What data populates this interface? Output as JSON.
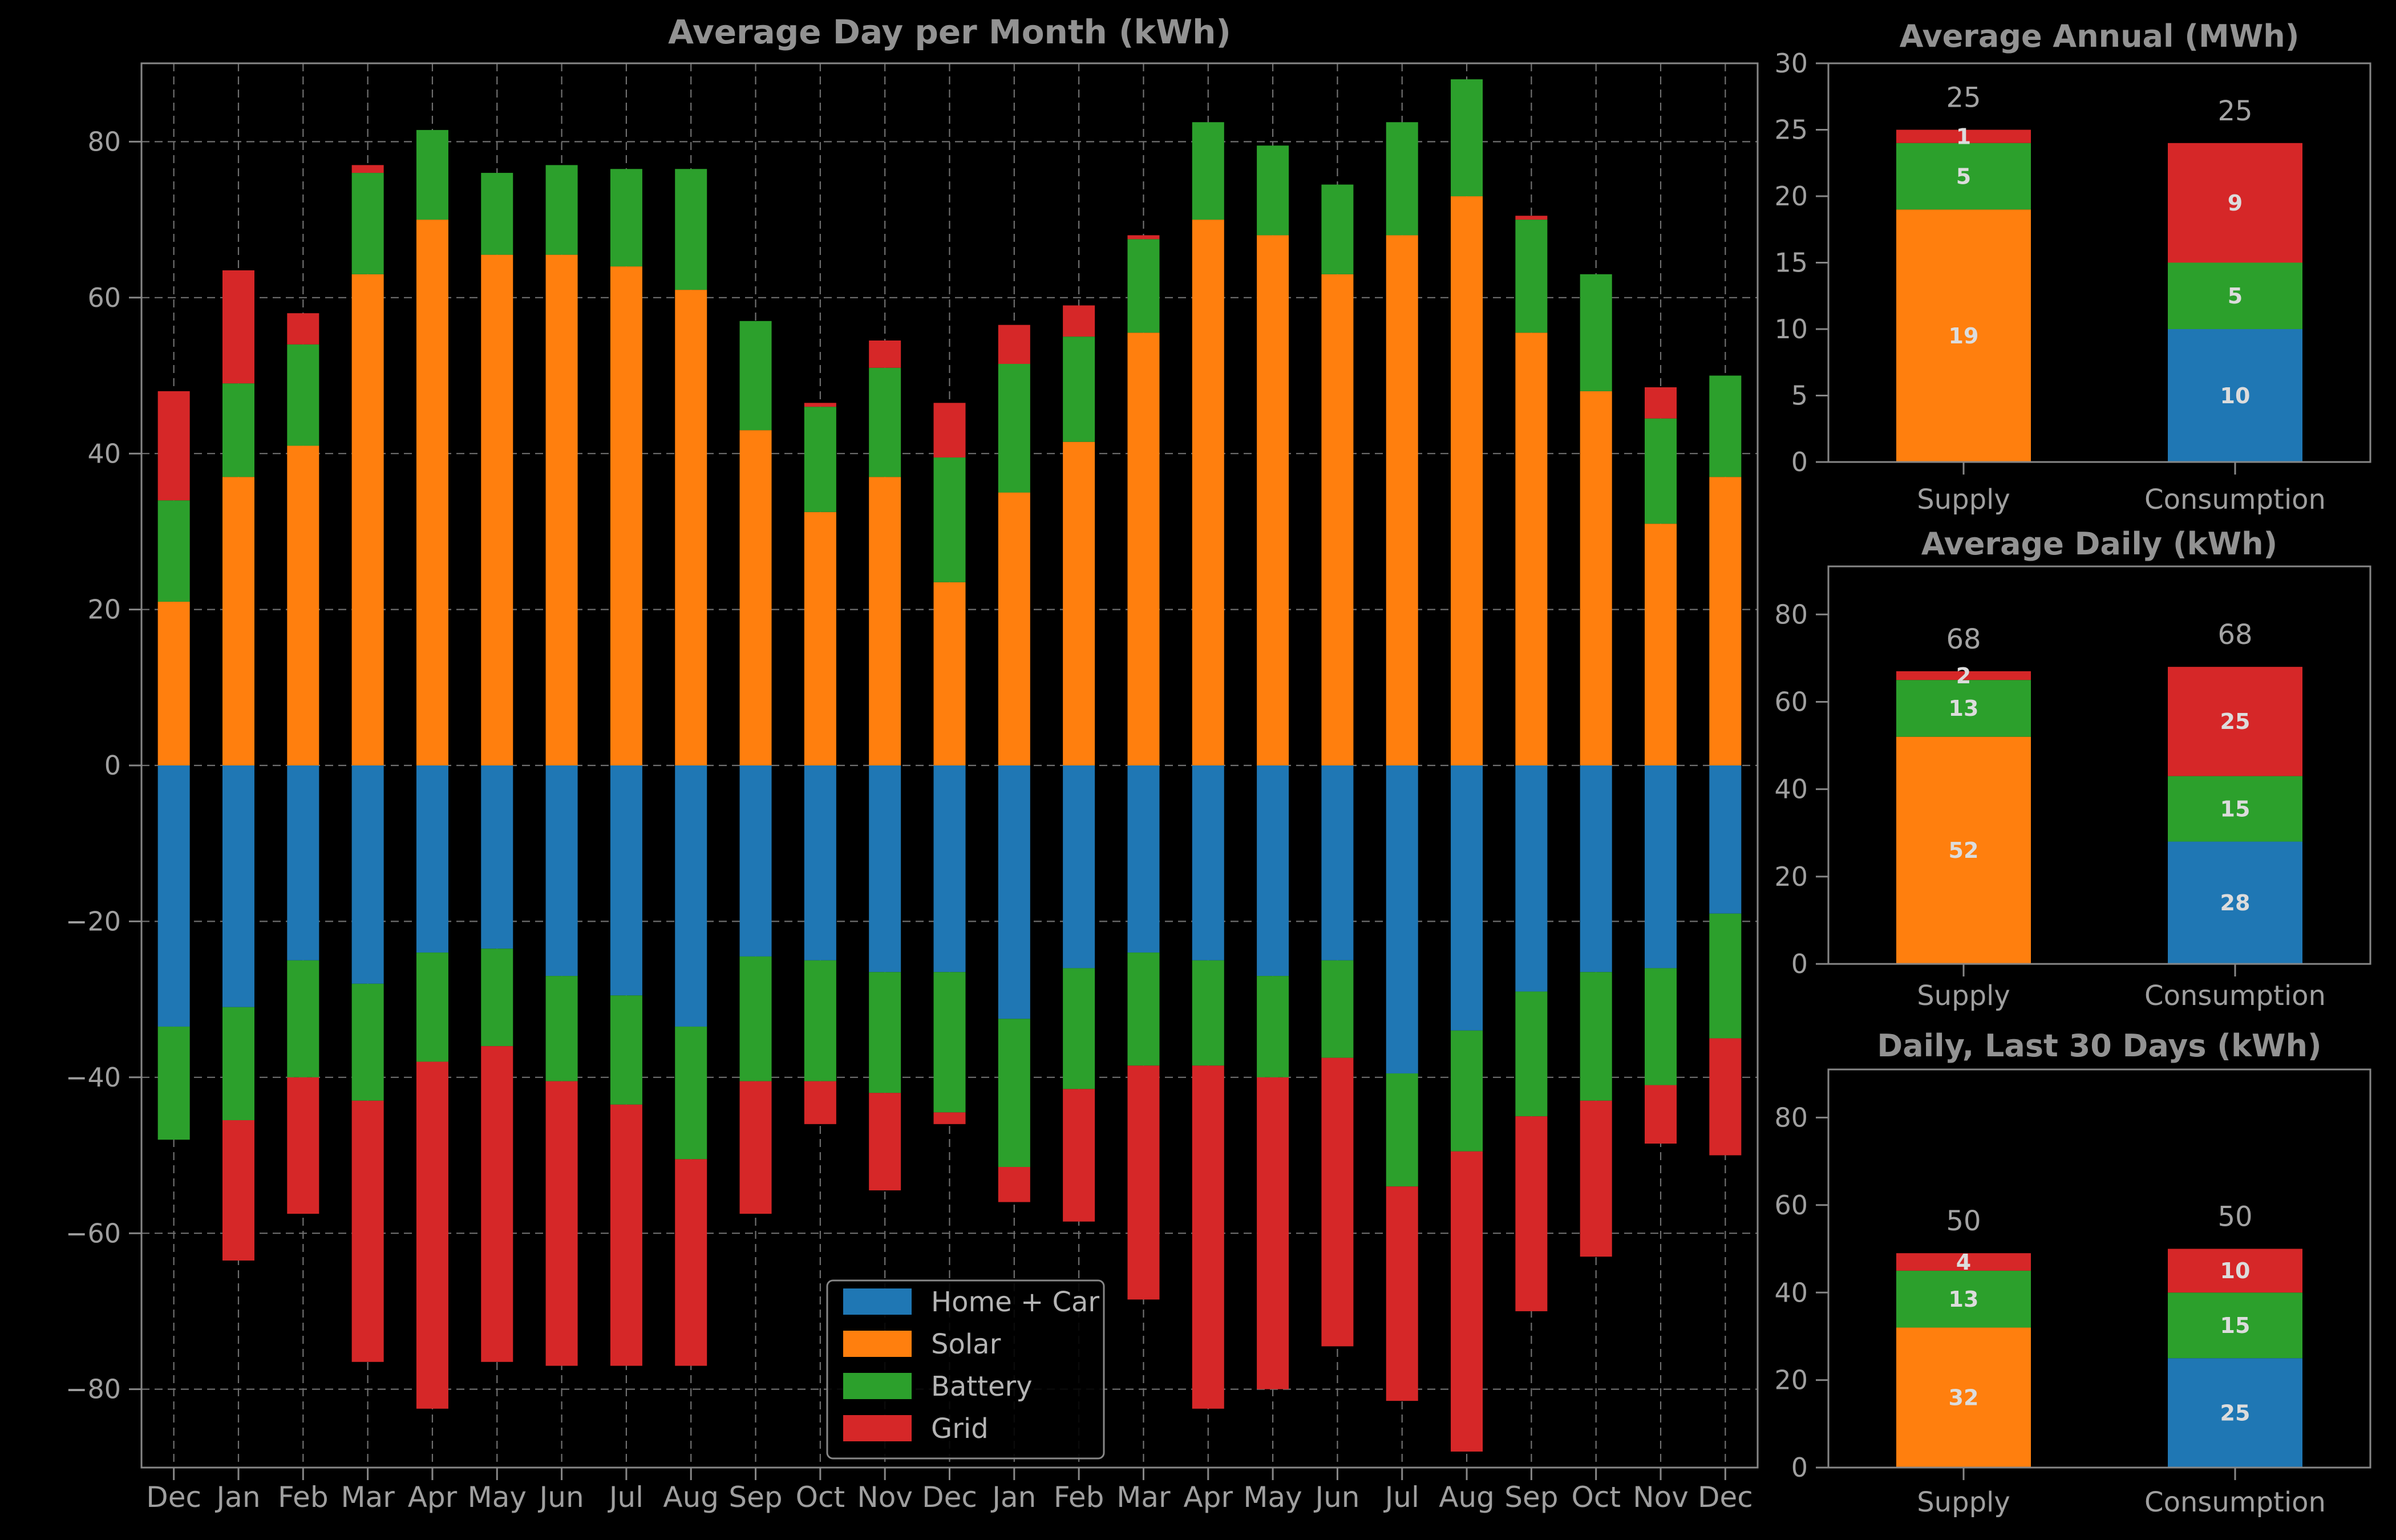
{
  "figure": {
    "background": "#000000",
    "palette": {
      "blue": "#1f77b4",
      "orange": "#ff7f0e",
      "green": "#2ca02c",
      "red": "#d62728"
    },
    "text_colors": {
      "ticks": "#9f9f9f",
      "titles": "#929292",
      "totals": "#a3a3a3",
      "segment_labels": "#dcdcdc",
      "legend": "#b4b4b4",
      "spine": "#878787",
      "grid": "#6f6f6f"
    }
  },
  "chart_data": [
    {
      "id": "avg-day-per-month",
      "type": "bar",
      "stacked": true,
      "title": "Average Day per Month (kWh)",
      "xlabel": "",
      "ylabel": "",
      "ylim": [
        -90,
        90
      ],
      "yticks": [
        -80,
        -60,
        -40,
        -20,
        0,
        20,
        40,
        60,
        80
      ],
      "grid": true,
      "categories": [
        "Dec",
        "Jan",
        "Feb",
        "Mar",
        "Apr",
        "May",
        "Jun",
        "Jul",
        "Aug",
        "Sep",
        "Oct",
        "Nov",
        "Dec",
        "Jan",
        "Feb",
        "Mar",
        "Apr",
        "May",
        "Jun",
        "Jul",
        "Aug",
        "Sep",
        "Oct",
        "Nov",
        "Dec"
      ],
      "legend": {
        "position": "lower-center-left",
        "entries": [
          {
            "label": "Home + Car",
            "color": "blue"
          },
          {
            "label": "Solar",
            "color": "orange"
          },
          {
            "label": "Battery",
            "color": "green"
          },
          {
            "label": "Grid",
            "color": "red"
          }
        ]
      },
      "series": [
        {
          "name": "Solar",
          "direction": "positive",
          "color": "orange",
          "values": [
            21,
            37,
            41,
            63,
            70,
            65.5,
            65.5,
            64,
            61,
            43,
            32.5,
            37,
            23.5,
            35,
            41.5,
            55.5,
            70,
            68,
            63,
            68,
            73,
            55.5,
            48,
            31,
            37
          ]
        },
        {
          "name": "Battery",
          "direction": "positive",
          "color": "green",
          "values": [
            13,
            12,
            13,
            13,
            11.5,
            10.5,
            11.5,
            12.5,
            15.5,
            14,
            13.5,
            14,
            16,
            16.5,
            13.5,
            12,
            12.5,
            11.5,
            11.5,
            14.5,
            15,
            14.5,
            15,
            13.5,
            13
          ]
        },
        {
          "name": "Grid",
          "direction": "positive",
          "color": "red",
          "values": [
            14,
            14.5,
            4,
            1,
            0,
            0,
            0,
            0,
            0,
            0,
            0.5,
            3.5,
            7,
            5,
            4,
            0.5,
            0,
            0,
            0,
            0,
            0,
            0.5,
            0,
            4,
            0
          ]
        },
        {
          "name": "Home + Car",
          "direction": "negative",
          "color": "blue",
          "values": [
            33.5,
            31,
            25,
            28,
            24,
            23.5,
            27,
            29.5,
            33.5,
            24.5,
            25,
            26.5,
            26.5,
            32.5,
            26,
            24,
            25,
            27,
            25,
            39.5,
            34,
            29,
            26.5,
            26,
            19
          ]
        },
        {
          "name": "Battery",
          "direction": "negative",
          "color": "green",
          "values": [
            14.5,
            14.5,
            15,
            15,
            14,
            12.5,
            13.5,
            14,
            17,
            16,
            15.5,
            15.5,
            18,
            19,
            15.5,
            14.5,
            13.5,
            13,
            12.5,
            14.5,
            15.5,
            16,
            16.5,
            15,
            16
          ]
        },
        {
          "name": "Grid",
          "direction": "negative",
          "color": "red",
          "values": [
            0,
            18,
            17.5,
            33.5,
            44.5,
            40.5,
            36.5,
            33.5,
            26.5,
            17,
            5.5,
            12.5,
            1.5,
            4.5,
            17,
            30,
            44,
            40,
            37,
            27.5,
            38.5,
            25,
            20,
            7.5,
            15
          ]
        }
      ]
    },
    {
      "id": "average-annual",
      "type": "bar",
      "stacked": true,
      "title": "Average Annual (MWh)",
      "ylim": [
        0,
        30
      ],
      "yticks": [
        0,
        5,
        10,
        15,
        20,
        25,
        30
      ],
      "grid": false,
      "categories": [
        "Supply",
        "Consumption"
      ],
      "totals": [
        25,
        25
      ],
      "bars": [
        {
          "category": "Supply",
          "segments": [
            {
              "label": "19",
              "value": 19,
              "color": "orange"
            },
            {
              "label": "5",
              "value": 5,
              "color": "green"
            },
            {
              "label": "1",
              "value": 1,
              "color": "red"
            }
          ]
        },
        {
          "category": "Consumption",
          "segments": [
            {
              "label": "10",
              "value": 10,
              "color": "blue"
            },
            {
              "label": "5",
              "value": 5,
              "color": "green"
            },
            {
              "label": "9",
              "value": 9,
              "color": "red"
            }
          ]
        }
      ]
    },
    {
      "id": "average-daily",
      "type": "bar",
      "stacked": true,
      "title": "Average Daily (kWh)",
      "ylim": [
        0,
        91
      ],
      "yticks": [
        0,
        20,
        40,
        60,
        80
      ],
      "grid": false,
      "categories": [
        "Supply",
        "Consumption"
      ],
      "totals": [
        68,
        68
      ],
      "bars": [
        {
          "category": "Supply",
          "segments": [
            {
              "label": "52",
              "value": 52,
              "color": "orange"
            },
            {
              "label": "13",
              "value": 13,
              "color": "green"
            },
            {
              "label": "2",
              "value": 2,
              "color": "red"
            }
          ]
        },
        {
          "category": "Consumption",
          "segments": [
            {
              "label": "28",
              "value": 28,
              "color": "blue"
            },
            {
              "label": "15",
              "value": 15,
              "color": "green"
            },
            {
              "label": "25",
              "value": 25,
              "color": "red"
            }
          ]
        }
      ]
    },
    {
      "id": "daily-last-30-days",
      "type": "bar",
      "stacked": true,
      "title": "Daily, Last 30 Days (kWh)",
      "ylim": [
        0,
        91
      ],
      "yticks": [
        0,
        20,
        40,
        60,
        80
      ],
      "grid": false,
      "categories": [
        "Supply",
        "Consumption"
      ],
      "totals": [
        50,
        50
      ],
      "bars": [
        {
          "category": "Supply",
          "segments": [
            {
              "label": "32",
              "value": 32,
              "color": "orange"
            },
            {
              "label": "13",
              "value": 13,
              "color": "green"
            },
            {
              "label": "4",
              "value": 4,
              "color": "red"
            }
          ]
        },
        {
          "category": "Consumption",
          "segments": [
            {
              "label": "25",
              "value": 25,
              "color": "blue"
            },
            {
              "label": "15",
              "value": 15,
              "color": "green"
            },
            {
              "label": "10",
              "value": 10,
              "color": "red"
            }
          ]
        }
      ]
    }
  ]
}
